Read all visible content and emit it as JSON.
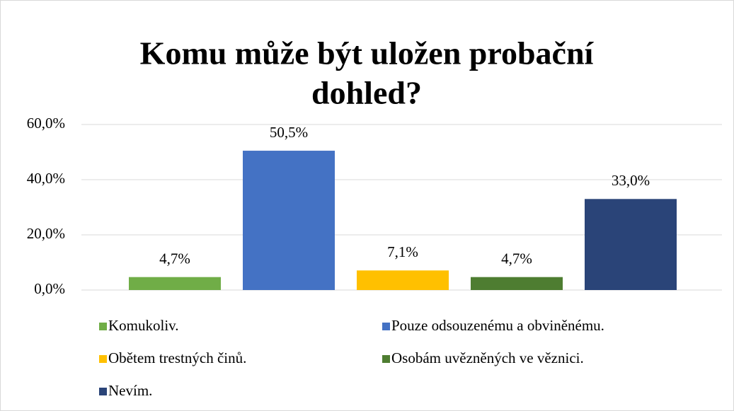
{
  "chart_data": {
    "type": "bar",
    "title": [
      "Komu může být uložen probační",
      "dohled?"
    ],
    "series": [
      {
        "name": "Komukoliv.",
        "color": "#70ad47",
        "values": [
          4.7
        ],
        "value_labels": [
          "4,7%"
        ]
      },
      {
        "name": "Pouze odsouzenému a obviněnému.",
        "color": "#4472c4",
        "values": [
          50.5
        ],
        "value_labels": [
          "50,5%"
        ]
      },
      {
        "name": "Obětem trestných činů.",
        "color": "#ffc000",
        "values": [
          7.1
        ],
        "value_labels": [
          "7,1%"
        ]
      },
      {
        "name": "Osobám uvězněných ve věznici.",
        "color": "#4e7d31",
        "values": [
          4.7
        ],
        "value_labels": [
          "4,7%"
        ]
      },
      {
        "name": "Nevím.",
        "color": "#2a4478",
        "values": [
          33.0
        ],
        "value_labels": [
          "33,0%"
        ]
      }
    ],
    "ylim": [
      0,
      60
    ],
    "yticks": [
      {
        "value": 0,
        "label": "0,0%"
      },
      {
        "value": 20,
        "label": "20,0%"
      },
      {
        "value": 40,
        "label": "40,0%"
      },
      {
        "value": 60,
        "label": "60,0%"
      }
    ],
    "grid": true
  }
}
